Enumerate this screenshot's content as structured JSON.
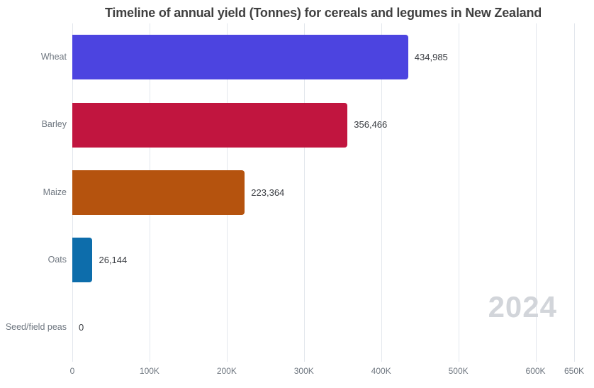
{
  "title": "Timeline of annual yield (Tonnes) for cereals and legumes in New Zealand",
  "watermark": {
    "year": "2024"
  },
  "chart_data": {
    "type": "bar",
    "orientation": "horizontal",
    "title": "Timeline of annual yield (Tonnes) for cereals and legumes in New Zealand",
    "categories": [
      "Wheat",
      "Barley",
      "Maize",
      "Oats",
      "Seed/field peas"
    ],
    "values": [
      434985,
      356466,
      223364,
      26144,
      0
    ],
    "value_labels": [
      "434,985",
      "356,466",
      "223,364",
      "26,144",
      "0"
    ],
    "bar_colors": [
      "#4c44e0",
      "#c1153f",
      "#b5530e",
      "#0d6dab",
      null
    ],
    "xlim": [
      0,
      650000
    ],
    "x_ticks": [
      0,
      100000,
      200000,
      300000,
      400000,
      500000,
      600000,
      650000
    ],
    "x_tick_labels": [
      "0",
      "100K",
      "200K",
      "300K",
      "400K",
      "500K",
      "600K",
      "650K"
    ],
    "xlabel": "",
    "ylabel": "",
    "grid": true,
    "legend": false,
    "annotation": "2024"
  },
  "colors": {
    "background": "#ffffff",
    "grid": "#e3e7ed",
    "title": "#404040",
    "category_label": "#6f7780",
    "value_label": "#3a3d42",
    "tick_label": "#6f7780",
    "watermark": "#d2d5da"
  }
}
